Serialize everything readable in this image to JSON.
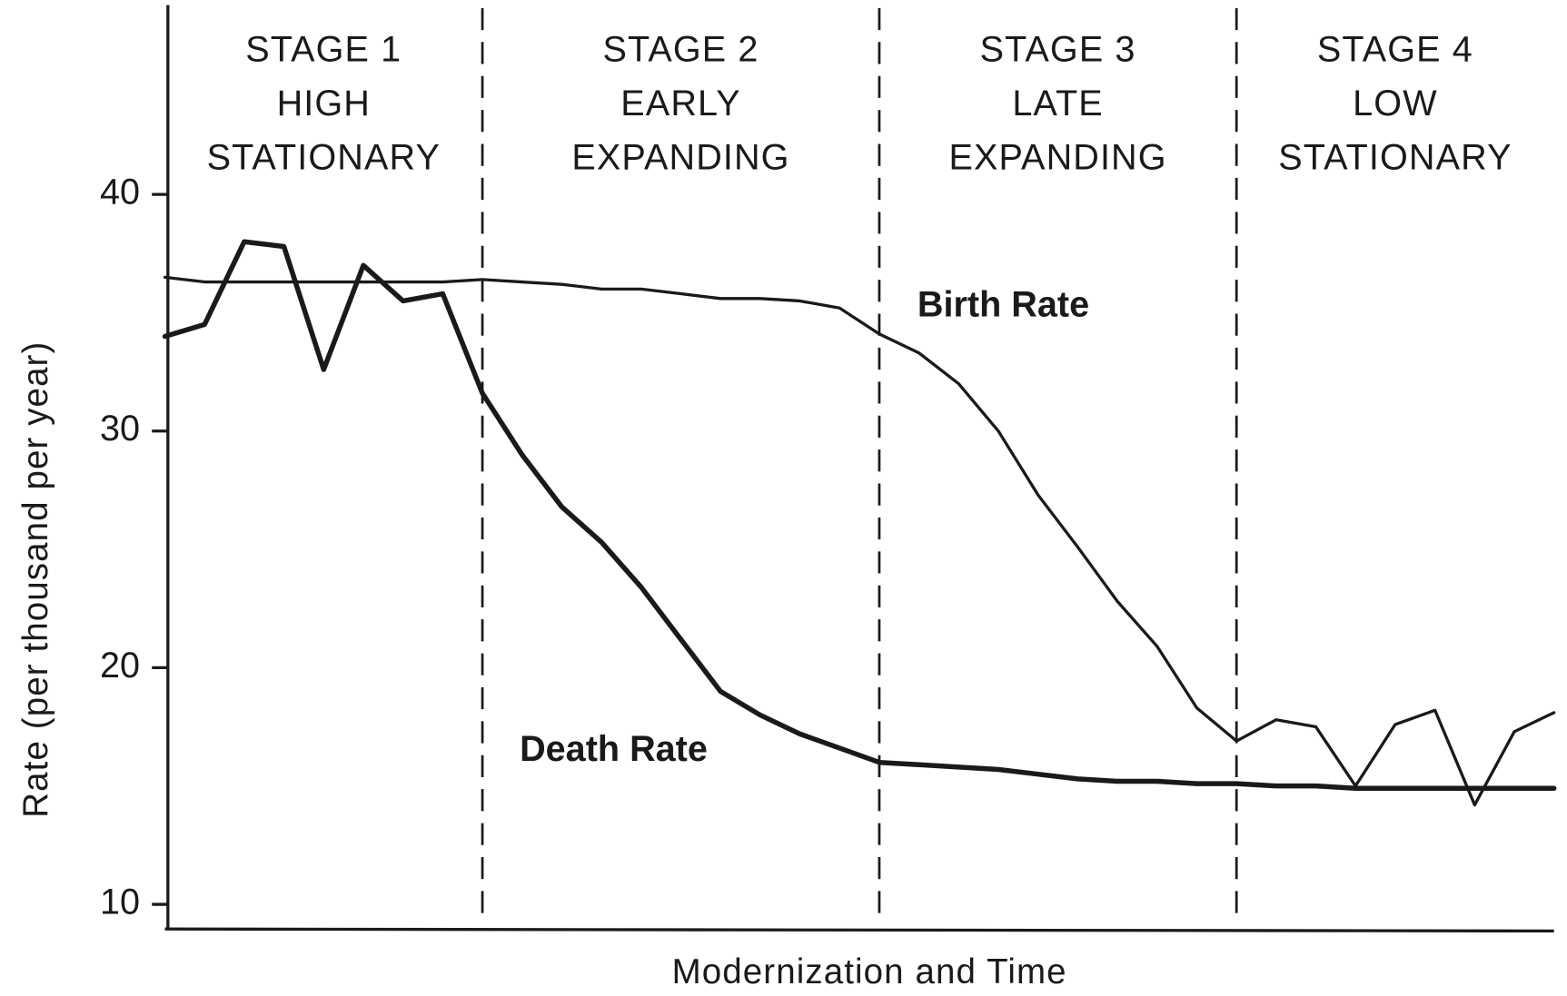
{
  "chart_data": {
    "type": "line",
    "x_label": "Modernization and Time",
    "y_label": "Rate (per thousand per year)",
    "categories": [
      null,
      null,
      null,
      null,
      null,
      null,
      null,
      null,
      null,
      null,
      null,
      null,
      null,
      null,
      null,
      null,
      null,
      null,
      null,
      null,
      null,
      null,
      null,
      null,
      null,
      null,
      null,
      null,
      null,
      null,
      null,
      null,
      null,
      null,
      null,
      null
    ],
    "series": [
      {
        "name": "Birth Rate",
        "color": "#1a1a1a",
        "values": [
          36.5,
          36.3,
          36.3,
          36.3,
          36.3,
          36.3,
          36.3,
          36.3,
          36.4,
          36.3,
          36.2,
          36.0,
          36.0,
          35.8,
          35.6,
          35.6,
          35.5,
          35.2,
          34.1,
          33.3,
          32.0,
          30.0,
          27.3,
          25.1,
          22.8,
          20.9,
          18.3,
          16.9,
          17.8,
          17.5,
          15.0,
          17.6,
          18.2,
          14.2,
          17.3,
          18.1
        ]
      },
      {
        "name": "Death Rate",
        "color": "#1a1a1a",
        "values": [
          34.0,
          34.5,
          38.0,
          37.8,
          32.6,
          37.0,
          35.5,
          35.8,
          31.6,
          29.0,
          26.8,
          25.3,
          23.4,
          21.2,
          19.0,
          18.0,
          17.2,
          16.6,
          16.0,
          15.9,
          15.8,
          15.7,
          15.5,
          15.3,
          15.2,
          15.2,
          15.1,
          15.1,
          15.0,
          15.0,
          14.9,
          14.9,
          14.9,
          14.9,
          14.9,
          14.9
        ]
      }
    ],
    "stages": [
      [
        "STAGE 1",
        "HIGH",
        "STATIONARY"
      ],
      [
        "STAGE 2",
        "EARLY",
        "EXPANDING"
      ],
      [
        "STAGE 3",
        "LATE",
        "EXPANDING"
      ],
      [
        "STAGE 4",
        "LOW",
        "STATIONARY"
      ]
    ],
    "ylim": [
      9,
      48
    ],
    "yticks": [
      10,
      20,
      30,
      40
    ]
  }
}
